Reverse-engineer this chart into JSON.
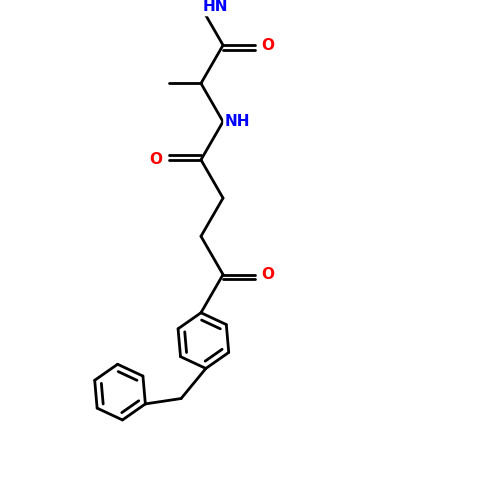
{
  "background_color": "#ffffff",
  "bond_color": "#000000",
  "nitrogen_color": "#0000ff",
  "oxygen_color": "#ff0000",
  "line_width": 2.0,
  "font_size_atom": 11,
  "figsize": [
    5.0,
    5.0
  ],
  "dpi": 100,
  "xlim": [
    0,
    10
  ],
  "ylim": [
    0,
    10
  ]
}
